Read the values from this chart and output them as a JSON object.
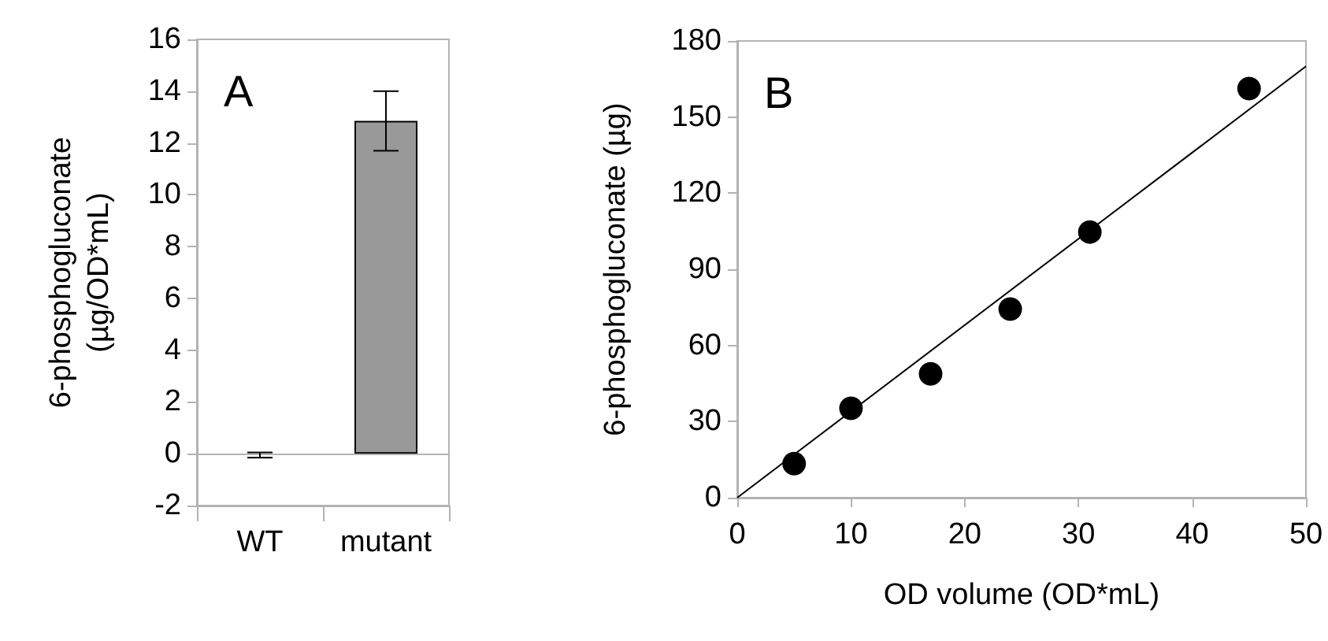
{
  "chart_data": [
    {
      "type": "bar",
      "title": "A",
      "ylabel": "6-phosphogluconate\n(µg/OD*mL)",
      "categories": [
        "WT",
        "mutant"
      ],
      "series": [
        {
          "colors": [
            "#000000",
            "#999999"
          ],
          "values": [
            -0.05,
            12.85
          ],
          "errors": [
            0.1,
            [
              11.7,
              14.0
            ]
          ]
        }
      ],
      "ylim": [
        -2,
        16
      ],
      "yticks": [
        -2,
        0,
        2,
        4,
        6,
        8,
        10,
        12,
        14,
        16
      ],
      "grid": false,
      "ref_lines": [
        {
          "axis": "y",
          "value": 0,
          "color": "#b3b3b3"
        }
      ]
    },
    {
      "type": "scatter",
      "title": "B",
      "xlabel": "OD volume (OD*mL)",
      "ylabel": "6-phosphogluconate (µg)",
      "series": [
        {
          "color": "#000000",
          "marker": "circle",
          "x": [
            5,
            10,
            17,
            24,
            31,
            45
          ],
          "values": [
            13.4,
            35.2,
            48.8,
            74.3,
            104.7,
            161.2
          ]
        },
        {
          "type": "line",
          "color": "#000000",
          "marker": "none",
          "line_style": "solid",
          "x": [
            0,
            50
          ],
          "values": [
            0,
            170
          ]
        }
      ],
      "xlim": [
        0,
        50
      ],
      "xticks": [
        0,
        10,
        20,
        30,
        40,
        50
      ],
      "ylim": [
        0,
        180
      ],
      "yticks": [
        0,
        30,
        60,
        90,
        120,
        150,
        180
      ],
      "grid": false
    }
  ]
}
